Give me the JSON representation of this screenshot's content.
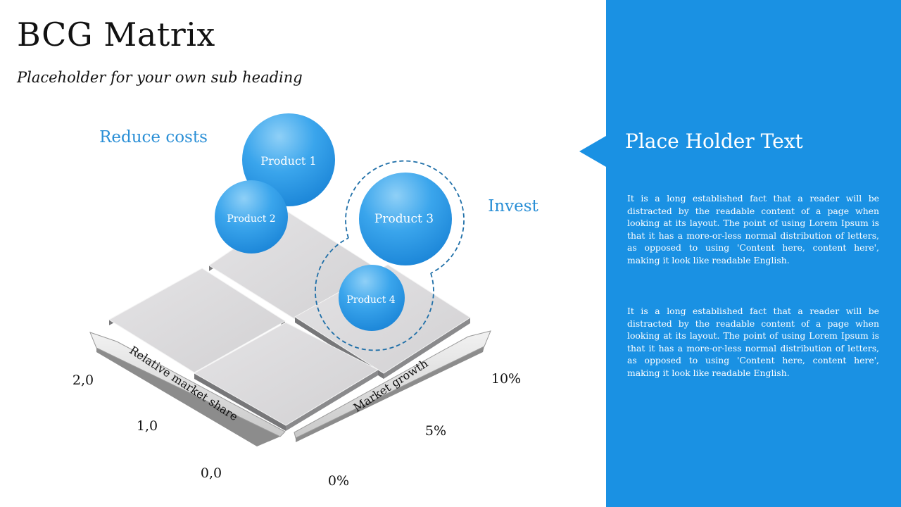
{
  "header": {
    "title": "BCG Matrix",
    "subtitle": "Placeholder for your own sub heading"
  },
  "diagram": {
    "quadrant_labels": {
      "top_left": "Reduce costs",
      "top_right": "Invest"
    },
    "products": [
      {
        "label": "Product 1"
      },
      {
        "label": "Product 2"
      },
      {
        "label": "Product 3"
      },
      {
        "label": "Product 4"
      }
    ],
    "axes": {
      "relative_market_share": {
        "label": "Relative market share",
        "ticks": [
          "2,0",
          "1,0",
          "0,0"
        ]
      },
      "market_growth": {
        "label": "Market growth",
        "ticks": [
          "10%",
          "5%",
          "0%"
        ]
      }
    },
    "colors": {
      "accent": "#1a91e3",
      "label_blue": "#2a8fd6",
      "tile": "#d9d8da",
      "dashed": "#1f6fa8"
    }
  },
  "panel": {
    "heading": "Place Holder Text",
    "paragraphs": [
      "It is a long established fact that a reader will be distracted by the readable content of a page when looking at its layout. The point of using Lorem Ipsum is that it has a more-or-less normal distribution of letters, as opposed to using 'Content here, content here', making it look like readable English.",
      "It is a long established fact that a reader will be distracted by the readable content of a page when looking at its layout. The point of using Lorem Ipsum is that it has a more-or-less normal distribution of letters, as opposed to using 'Content here, content here', making it look like readable English."
    ]
  }
}
